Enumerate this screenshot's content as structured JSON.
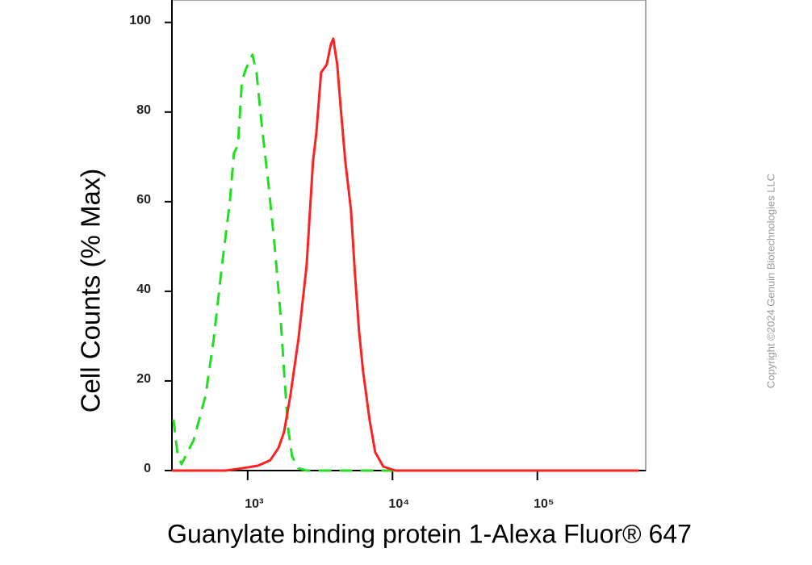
{
  "chart_data": {
    "type": "line",
    "x_label": "Guanylate binding protein 1-Alexa Fluor® 647",
    "y_label": "Cell Counts (% Max)",
    "copyright": "Copyright ©2024 Genuin Biotechnologies LLC",
    "xscale": "log",
    "xlim": [
      300,
      560000
    ],
    "ylim": [
      0,
      105
    ],
    "xticks": [
      {
        "value": 1000,
        "label": "10³"
      },
      {
        "value": 10000,
        "label": "10⁴"
      },
      {
        "value": 100000,
        "label": "10⁵"
      }
    ],
    "yticks": [
      0,
      20,
      40,
      60,
      80,
      100
    ],
    "series": [
      {
        "color": "#22dd22",
        "dash": true,
        "x": [
          307,
          327,
          349,
          424,
          513,
          583,
          664,
          754,
          804,
          857,
          914,
          975,
          1080,
          1151,
          1260,
          1396,
          1527,
          1671,
          1782,
          1900,
          2025,
          2244,
          2551,
          500000
        ],
        "values": [
          11.4,
          4.1,
          1.4,
          6.8,
          16.8,
          29.4,
          45.6,
          60,
          70.8,
          72.6,
          87,
          89.7,
          92.8,
          88.8,
          76.2,
          63.6,
          51,
          36.6,
          22.2,
          9.5,
          3.2,
          0.5,
          0,
          0
        ]
      },
      {
        "color": "#ff2020",
        "dash": false,
        "x": [
          300,
          708,
          914,
          1181,
          1432,
          1630,
          1782,
          1973,
          2244,
          2551,
          2825,
          2977,
          3214,
          3515,
          3751,
          3898,
          4153,
          4373,
          4724,
          5166,
          5508,
          5873,
          6262,
          6940,
          7592,
          8625,
          10450,
          500000
        ],
        "values": [
          0,
          0,
          0.5,
          1.1,
          2.3,
          5,
          8.6,
          16.8,
          29.4,
          45.6,
          69,
          75.3,
          88.8,
          90.6,
          95.1,
          96.4,
          90.6,
          81.6,
          69,
          58.2,
          43.8,
          31.2,
          22.2,
          11.4,
          4.1,
          0.9,
          0,
          0
        ]
      }
    ]
  }
}
